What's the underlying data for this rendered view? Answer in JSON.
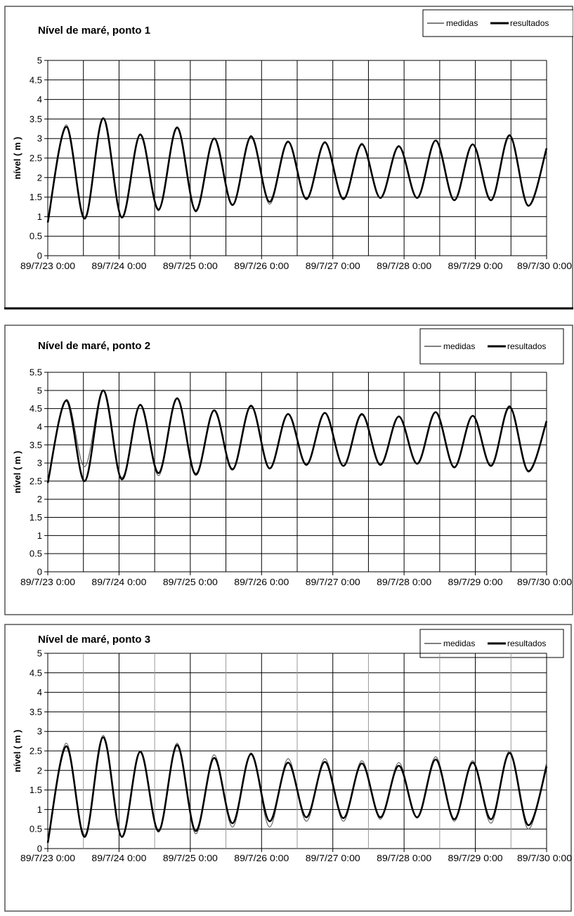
{
  "chart_data": [
    {
      "type": "line",
      "title": "Nível de maré, ponto 1",
      "ylabel": "nível ( m )",
      "xlabel": "",
      "ylim": [
        0,
        5
      ],
      "yticks": [
        "0",
        "0.5",
        "1",
        "1.5",
        "2",
        "2.5",
        "3",
        "3.5",
        "4",
        "4.5",
        "5"
      ],
      "xlim": [
        "89/7/23 0:00",
        "89/7/30 0:00"
      ],
      "xticks": [
        "89/7/23 0:00",
        "89/7/24 0:00",
        "89/7/25 0:00",
        "89/7/26 0:00",
        "89/7/27 0:00",
        "89/7/28 0:00",
        "89/7/29 0:00",
        "89/7/30 0:00"
      ],
      "grid": true,
      "legend": "top-right",
      "series_style": [
        "thin",
        "thick"
      ],
      "series": [
        {
          "name": "medidas",
          "values": [
            0.9,
            3.35,
            1.0,
            3.5,
            1.0,
            3.12,
            1.15,
            3.3,
            1.12,
            3.0,
            1.28,
            3.08,
            1.32,
            2.9,
            1.48,
            2.92,
            1.48,
            2.88,
            1.48,
            2.82,
            1.48,
            2.95,
            1.42,
            2.85,
            1.42,
            3.1,
            1.28,
            2.7
          ]
        },
        {
          "name": "resultados",
          "values": [
            0.85,
            3.3,
            0.95,
            3.52,
            0.98,
            3.1,
            1.18,
            3.28,
            1.15,
            3.0,
            1.3,
            3.05,
            1.38,
            2.92,
            1.45,
            2.9,
            1.45,
            2.85,
            1.48,
            2.8,
            1.48,
            2.95,
            1.42,
            2.85,
            1.42,
            3.08,
            1.28,
            2.75
          ]
        }
      ]
    },
    {
      "type": "line",
      "title": "Nível de maré, ponto 2",
      "ylabel": "nível ( m )",
      "xlabel": "",
      "ylim": [
        0,
        5.5
      ],
      "yticks": [
        "0",
        "0.5",
        "1",
        "1.5",
        "2",
        "2.5",
        "3",
        "3.5",
        "4",
        "4.5",
        "5",
        "5.5"
      ],
      "xlim": [
        "89/7/23 0:00",
        "89/7/30 0:00"
      ],
      "xticks": [
        "89/7/23 0:00",
        "89/7/24 0:00",
        "89/7/25 0:00",
        "89/7/26 0:00",
        "89/7/27 0:00",
        "89/7/28 0:00",
        "89/7/29 0:00",
        "89/7/30 0:00"
      ],
      "grid": true,
      "legend": "top-right",
      "series_style": [
        "thin",
        "thick"
      ],
      "series": [
        {
          "name": "medidas",
          "values": [
            2.45,
            4.75,
            2.9,
            5.0,
            2.6,
            4.62,
            2.65,
            4.8,
            2.72,
            4.45,
            2.85,
            4.55,
            2.85,
            4.35,
            2.95,
            4.38,
            2.92,
            4.32,
            2.95,
            4.3,
            2.98,
            4.4,
            2.9,
            4.3,
            2.95,
            4.58,
            2.75,
            4.2
          ]
        },
        {
          "name": "resultados",
          "values": [
            2.45,
            4.72,
            2.5,
            5.0,
            2.55,
            4.6,
            2.72,
            4.78,
            2.68,
            4.45,
            2.82,
            4.58,
            2.85,
            4.35,
            2.95,
            4.38,
            2.92,
            4.35,
            2.95,
            4.28,
            2.98,
            4.4,
            2.88,
            4.3,
            2.92,
            4.55,
            2.78,
            4.15
          ]
        }
      ]
    },
    {
      "type": "line",
      "title": "Nível de maré, ponto 3",
      "ylabel": "nível ( m )",
      "xlabel": "",
      "ylim": [
        0,
        5
      ],
      "yticks": [
        "0",
        "0.5",
        "1",
        "1.5",
        "2",
        "2.5",
        "3",
        "3.5",
        "4",
        "4.5",
        "5"
      ],
      "xlim": [
        "89/7/23 0:00",
        "89/7/30 0:00"
      ],
      "xticks": [
        "89/7/23 0:00",
        "89/7/24 0:00",
        "89/7/25 0:00",
        "89/7/26 0:00",
        "89/7/27 0:00",
        "89/7/28 0:00",
        "89/7/29 0:00",
        "89/7/30 0:00"
      ],
      "grid": true,
      "legend": "top-right",
      "series_style": [
        "thin",
        "thick"
      ],
      "series": [
        {
          "name": "medidas",
          "values": [
            0.2,
            2.7,
            0.35,
            2.9,
            0.3,
            2.5,
            0.42,
            2.7,
            0.38,
            2.4,
            0.55,
            2.45,
            0.55,
            2.3,
            0.7,
            2.3,
            0.7,
            2.25,
            0.75,
            2.2,
            0.78,
            2.35,
            0.7,
            2.25,
            0.65,
            2.5,
            0.5,
            2.2
          ]
        },
        {
          "name": "resultados",
          "values": [
            0.15,
            2.62,
            0.3,
            2.85,
            0.3,
            2.48,
            0.45,
            2.65,
            0.45,
            2.32,
            0.65,
            2.42,
            0.7,
            2.2,
            0.8,
            2.22,
            0.78,
            2.18,
            0.8,
            2.12,
            0.8,
            2.28,
            0.75,
            2.2,
            0.75,
            2.45,
            0.6,
            2.1
          ]
        }
      ]
    }
  ]
}
